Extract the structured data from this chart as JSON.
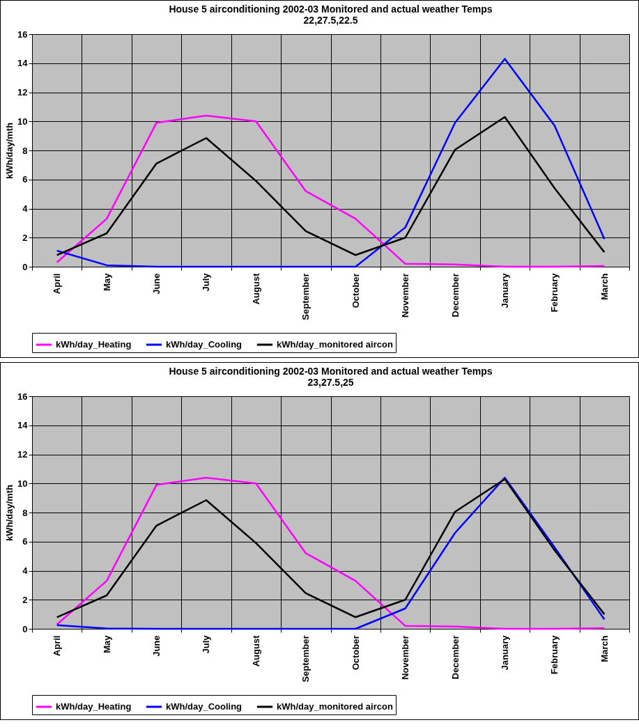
{
  "chart_data": [
    {
      "type": "line",
      "title": "House 5 airconditioning 2002-03 Monitored and actual weather Temps",
      "subtitle": "22,27.5,22.5",
      "ylabel": "kWh/day/mth",
      "categories": [
        "April",
        "May",
        "June",
        "July",
        "August",
        "September",
        "October",
        "November",
        "December",
        "January",
        "February",
        "March"
      ],
      "series": [
        {
          "name": "kWh/day_Heating",
          "color": "#ff00ff",
          "values": [
            0.3,
            3.3,
            9.9,
            10.4,
            10.0,
            5.2,
            3.3,
            0.2,
            0.15,
            0,
            0,
            0.05
          ]
        },
        {
          "name": "kWh/day_Cooling",
          "color": "#0000ff",
          "values": [
            1.1,
            0.1,
            0,
            0,
            0,
            0,
            0,
            2.7,
            9.9,
            14.3,
            9.7,
            1.9
          ]
        },
        {
          "name": "kWh/day_monitored aircon",
          "color": "#000000",
          "values": [
            0.8,
            2.3,
            7.1,
            8.85,
            5.9,
            2.45,
            0.8,
            2.0,
            8.05,
            10.3,
            5.4,
            1.0
          ]
        }
      ],
      "ylim": [
        0,
        16
      ],
      "yticks": [
        0,
        2,
        4,
        6,
        8,
        10,
        12,
        14,
        16
      ],
      "grid": true,
      "legend": "bottom",
      "marker": "none",
      "line_style": "solid"
    },
    {
      "type": "line",
      "title": "House 5 airconditioning 2002-03 Monitored and actual weather Temps",
      "subtitle": "23,27.5,25",
      "ylabel": "kWh/day/mth",
      "categories": [
        "April",
        "May",
        "June",
        "July",
        "August",
        "September",
        "October",
        "November",
        "December",
        "January",
        "February",
        "March"
      ],
      "series": [
        {
          "name": "kWh/day_Heating",
          "color": "#ff00ff",
          "values": [
            0.3,
            3.3,
            9.9,
            10.4,
            10.0,
            5.2,
            3.3,
            0.2,
            0.15,
            0,
            0,
            0.05
          ]
        },
        {
          "name": "kWh/day_Cooling",
          "color": "#0000ff",
          "values": [
            0.25,
            0.02,
            0,
            0,
            0,
            0,
            0,
            1.4,
            6.6,
            10.4,
            5.6,
            0.65
          ]
        },
        {
          "name": "kWh/day_monitored aircon",
          "color": "#000000",
          "values": [
            0.8,
            2.3,
            7.1,
            8.85,
            5.9,
            2.45,
            0.8,
            2.0,
            8.05,
            10.3,
            5.4,
            1.0
          ]
        }
      ],
      "ylim": [
        0,
        16
      ],
      "yticks": [
        0,
        2,
        4,
        6,
        8,
        10,
        12,
        14,
        16
      ],
      "grid": true,
      "legend": "bottom",
      "marker": "none",
      "line_style": "solid"
    }
  ]
}
